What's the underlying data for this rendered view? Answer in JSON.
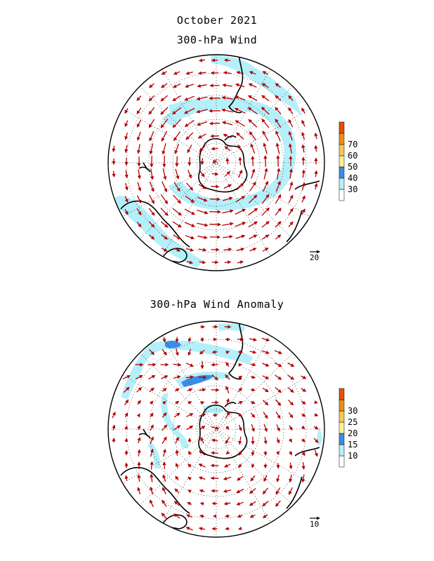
{
  "header": {
    "title": "October 2021"
  },
  "panels": [
    {
      "title": "300-hPa Wind",
      "reference_vector": "20",
      "colorbar": {
        "levels": [
          "30",
          "40",
          "50",
          "60",
          "70"
        ],
        "colors": [
          "#ffffff",
          "#b4f0fa",
          "#3c8ce6",
          "#fff096",
          "#fac850",
          "#f08c14",
          "#e65000"
        ]
      }
    },
    {
      "title": "300-hPa Wind Anomaly",
      "reference_vector": "10",
      "colorbar": {
        "levels": [
          "10",
          "15",
          "20",
          "25",
          "30"
        ],
        "colors": [
          "#ffffff",
          "#b4f0fa",
          "#3c8ce6",
          "#fff096",
          "#fac850",
          "#f08c14",
          "#e65000"
        ]
      }
    }
  ],
  "style": {
    "arrow_color": "#b40000",
    "coast_color": "#000000",
    "grid_color": "#000000"
  }
}
